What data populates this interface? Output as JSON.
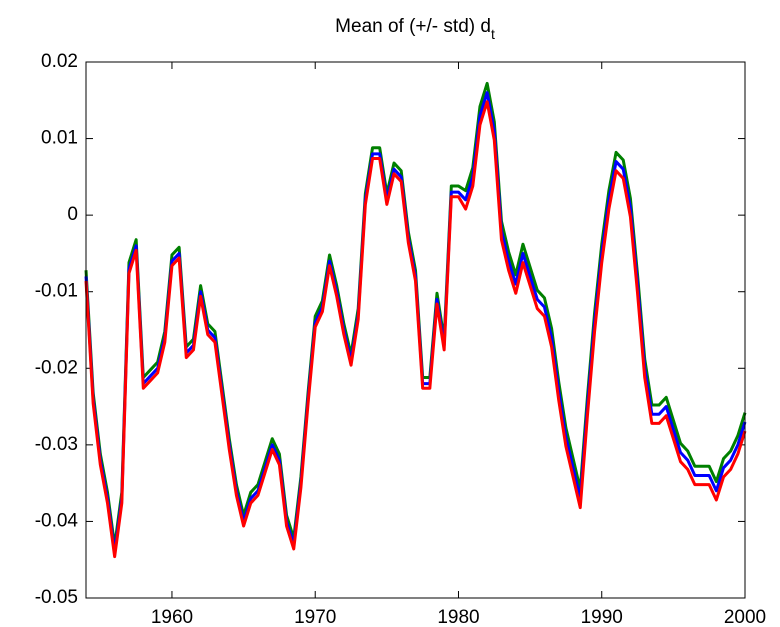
{
  "chart_data": {
    "type": "line",
    "title": "Mean of (+/- std) d",
    "title_subscript": "t",
    "x": [
      1954,
      1954.5,
      1955,
      1955.5,
      1956,
      1956.5,
      1957,
      1957.5,
      1958,
      1958.5,
      1959,
      1959.5,
      1960,
      1960.5,
      1961,
      1961.5,
      1962,
      1962.5,
      1963,
      1963.5,
      1964,
      1964.5,
      1965,
      1965.5,
      1966,
      1966.5,
      1967,
      1967.5,
      1968,
      1968.5,
      1969,
      1969.5,
      1970,
      1970.5,
      1971,
      1971.5,
      1972,
      1972.5,
      1973,
      1973.5,
      1974,
      1974.5,
      1975,
      1975.5,
      1976,
      1976.5,
      1977,
      1977.5,
      1978,
      1978.5,
      1979,
      1979.5,
      1980,
      1980.5,
      1981,
      1981.5,
      1982,
      1982.5,
      1983,
      1983.5,
      1984,
      1984.5,
      1985,
      1985.5,
      1986,
      1986.5,
      1987,
      1987.5,
      1988,
      1988.5,
      1989,
      1989.5,
      1990,
      1990.5,
      1991,
      1991.5,
      1992,
      1992.5,
      1993,
      1993.5,
      1994,
      1994.5,
      1995,
      1995.5,
      1996,
      1996.5,
      1997,
      1997.5,
      1998,
      1998.5,
      1999,
      1999.5,
      2000
    ],
    "series": [
      {
        "color": "#008000",
        "values": [
          -0.0072,
          -0.0232,
          -0.0312,
          -0.0362,
          -0.0432,
          -0.0362,
          -0.0062,
          -0.0032,
          -0.0212,
          -0.0202,
          -0.0192,
          -0.0152,
          -0.0052,
          -0.0042,
          -0.0172,
          -0.0162,
          -0.0092,
          -0.0142,
          -0.0152,
          -0.0222,
          -0.0292,
          -0.0352,
          -0.0392,
          -0.0362,
          -0.0352,
          -0.0322,
          -0.0292,
          -0.0312,
          -0.0392,
          -0.0422,
          -0.0342,
          -0.0232,
          -0.0132,
          -0.0112,
          -0.0052,
          -0.0092,
          -0.0142,
          -0.0182,
          -0.0122,
          0.0028,
          0.0088,
          0.0088,
          0.0028,
          0.0068,
          0.0058,
          -0.0022,
          -0.0072,
          -0.0212,
          -0.0212,
          -0.0102,
          -0.0162,
          0.0038,
          0.0038,
          0.0032,
          0.0062,
          0.0142,
          0.0172,
          0.0122,
          -0.0008,
          -0.0048,
          -0.0078,
          -0.0038,
          -0.0068,
          -0.0098,
          -0.0108,
          -0.0148,
          -0.0218,
          -0.0278,
          -0.0318,
          -0.0358,
          -0.0238,
          -0.0128,
          -0.0038,
          0.0032,
          0.0082,
          0.0072,
          0.0022,
          -0.0078,
          -0.0188,
          -0.0248,
          -0.0248,
          -0.0238,
          -0.0268,
          -0.0298,
          -0.0308,
          -0.0328,
          -0.0328,
          -0.0328,
          -0.0348,
          -0.0318,
          -0.0308,
          -0.0288,
          -0.0258
        ]
      },
      {
        "color": "#0000ff",
        "values": [
          -0.008,
          -0.024,
          -0.032,
          -0.037,
          -0.044,
          -0.037,
          -0.007,
          -0.004,
          -0.022,
          -0.021,
          -0.02,
          -0.016,
          -0.006,
          -0.005,
          -0.018,
          -0.017,
          -0.01,
          -0.015,
          -0.016,
          -0.023,
          -0.03,
          -0.036,
          -0.04,
          -0.037,
          -0.036,
          -0.033,
          -0.03,
          -0.032,
          -0.04,
          -0.043,
          -0.035,
          -0.024,
          -0.014,
          -0.012,
          -0.006,
          -0.01,
          -0.015,
          -0.019,
          -0.013,
          0.002,
          0.008,
          0.008,
          0.002,
          0.006,
          0.005,
          -0.003,
          -0.008,
          -0.022,
          -0.022,
          -0.011,
          -0.017,
          0.003,
          0.003,
          0.002,
          0.005,
          0.013,
          0.016,
          0.011,
          -0.002,
          -0.006,
          -0.009,
          -0.005,
          -0.008,
          -0.011,
          -0.012,
          -0.016,
          -0.023,
          -0.029,
          -0.033,
          -0.037,
          -0.025,
          -0.014,
          -0.005,
          0.002,
          0.007,
          0.006,
          0.001,
          -0.009,
          -0.02,
          -0.026,
          -0.026,
          -0.025,
          -0.028,
          -0.031,
          -0.032,
          -0.034,
          -0.034,
          -0.034,
          -0.036,
          -0.033,
          -0.032,
          -0.03,
          -0.027
        ]
      },
      {
        "color": "#ff0000",
        "values": [
          -0.0086,
          -0.0246,
          -0.0326,
          -0.0376,
          -0.0446,
          -0.0376,
          -0.0076,
          -0.0046,
          -0.0226,
          -0.0216,
          -0.0206,
          -0.0166,
          -0.0066,
          -0.0056,
          -0.0186,
          -0.0176,
          -0.0106,
          -0.0156,
          -0.0166,
          -0.0236,
          -0.0306,
          -0.0366,
          -0.0406,
          -0.0376,
          -0.0366,
          -0.0336,
          -0.0306,
          -0.0326,
          -0.0406,
          -0.0436,
          -0.0356,
          -0.0246,
          -0.0146,
          -0.0126,
          -0.0066,
          -0.0106,
          -0.0156,
          -0.0196,
          -0.0136,
          0.0014,
          0.0074,
          0.0074,
          0.0014,
          0.0054,
          0.0044,
          -0.0036,
          -0.0086,
          -0.0226,
          -0.0226,
          -0.0116,
          -0.0176,
          0.0024,
          0.0024,
          0.0008,
          0.0038,
          0.0118,
          0.0148,
          0.0098,
          -0.0032,
          -0.0072,
          -0.0102,
          -0.0062,
          -0.0092,
          -0.0122,
          -0.0132,
          -0.0172,
          -0.0242,
          -0.0302,
          -0.0342,
          -0.0382,
          -0.0262,
          -0.0152,
          -0.0062,
          0.0008,
          0.0058,
          0.0048,
          -0.0002,
          -0.0102,
          -0.0212,
          -0.0272,
          -0.0272,
          -0.0262,
          -0.0292,
          -0.0322,
          -0.0332,
          -0.0352,
          -0.0352,
          -0.0352,
          -0.0372,
          -0.0342,
          -0.0332,
          -0.0312,
          -0.0282
        ]
      }
    ],
    "xlim": [
      1954,
      2000
    ],
    "xticks": [
      1960,
      1970,
      1980,
      1990,
      2000
    ],
    "ylim": [
      -0.05,
      0.02
    ],
    "yticks": [
      -0.05,
      -0.04,
      -0.03,
      -0.02,
      -0.01,
      0,
      0.01,
      0.02
    ]
  }
}
